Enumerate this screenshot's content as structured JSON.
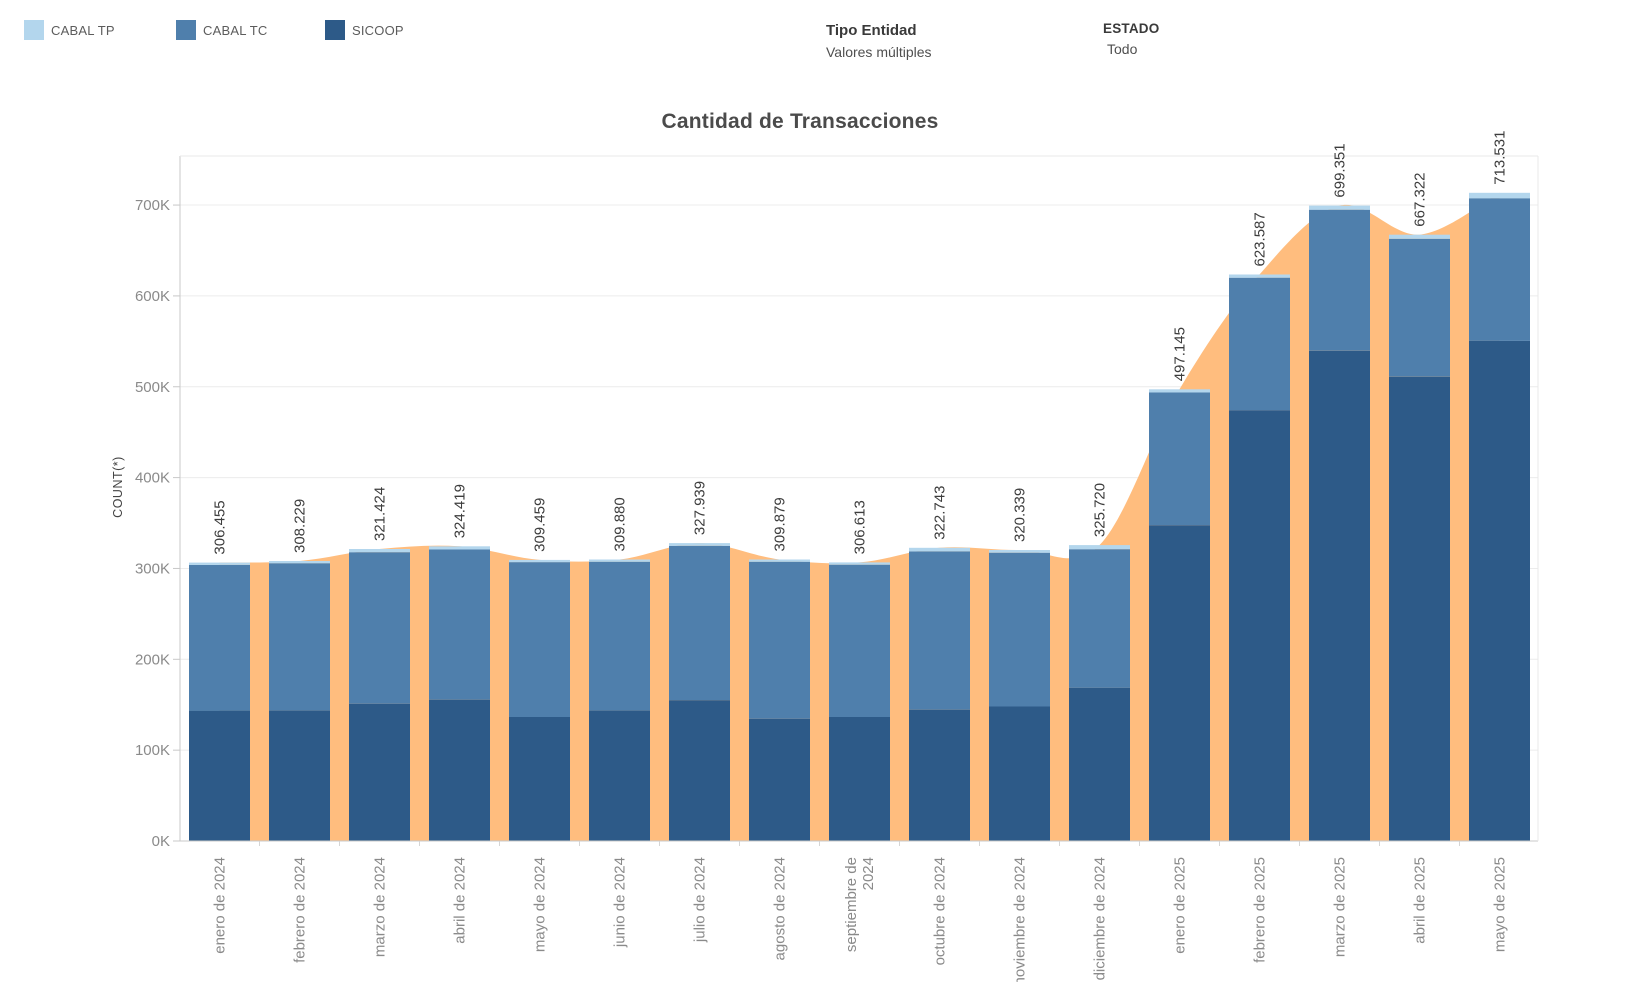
{
  "legend": {
    "items": [
      {
        "label": "CABAL TP",
        "color": "#B3D6ED"
      },
      {
        "label": "CABAL TC",
        "color": "#4F7FAC"
      },
      {
        "label": "SICOOP",
        "color": "#2D5A88"
      }
    ]
  },
  "filters": [
    {
      "title": "Tipo Entidad",
      "value": "Valores múltiples"
    },
    {
      "title": "ESTADO",
      "value": "Todo"
    }
  ],
  "chart_data": {
    "type": "bar",
    "subtype": "stacked-bars-with-area-overlay",
    "title": "Cantidad de Transacciones",
    "xlabel": "",
    "ylabel": "COUNT(*)",
    "units": "thousands",
    "ylim": [
      0,
      754
    ],
    "grid": true,
    "legend_position": "top-left",
    "y_ticks": [
      "0K",
      "100K",
      "200K",
      "300K",
      "400K",
      "500K",
      "600K",
      "700K"
    ],
    "categories": [
      [
        "enero de 2024"
      ],
      [
        "febrero de 2024"
      ],
      [
        "marzo de 2024"
      ],
      [
        "abril de 2024"
      ],
      [
        "mayo de 2024"
      ],
      [
        "junio de 2024"
      ],
      [
        "julio de 2024"
      ],
      [
        "agosto de 2024"
      ],
      [
        "septiembre de",
        "2024"
      ],
      [
        "octubre de 2024"
      ],
      [
        "noviembre de 2024"
      ],
      [
        "diciembre de 2024"
      ],
      [
        "enero de 2025"
      ],
      [
        "febrero de 2025"
      ],
      [
        "marzo de 2025"
      ],
      [
        "abril de 2025"
      ],
      [
        "mayo de 2025"
      ]
    ],
    "series": [
      {
        "name": "SICOOP",
        "color": "#2D5A88",
        "values": [
          143.5,
          143.5,
          151.0,
          155.5,
          136.5,
          143.5,
          155.0,
          134.5,
          136.5,
          144.5,
          148.0,
          168.5,
          347.5,
          474.0,
          539.5,
          511.0,
          550.5
        ]
      },
      {
        "name": "CABAL TC",
        "color": "#4F7FAC",
        "values": [
          160.455,
          162.229,
          166.924,
          165.419,
          170.459,
          163.88,
          169.939,
          172.879,
          167.613,
          174.243,
          169.339,
          152.72,
          146.145,
          146.087,
          155.351,
          151.822,
          157.031
        ]
      },
      {
        "name": "CABAL TP",
        "color": "#B3D6ED",
        "values": [
          2.5,
          2.5,
          3.5,
          3.5,
          2.5,
          2.5,
          3.0,
          2.5,
          2.5,
          4.0,
          3.0,
          4.5,
          3.5,
          3.5,
          4.5,
          4.5,
          6.0
        ]
      }
    ],
    "totals": [
      306.455,
      308.229,
      321.424,
      324.419,
      309.459,
      309.88,
      327.939,
      309.879,
      306.613,
      322.743,
      320.339,
      325.72,
      497.145,
      623.587,
      699.351,
      667.322,
      713.531
    ],
    "total_labels": [
      "306.455",
      "308.229",
      "321.424",
      "324.419",
      "309.459",
      "309.880",
      "327.939",
      "309.879",
      "306.613",
      "322.743",
      "320.339",
      "325.720",
      "497.145",
      "623.587",
      "699.351",
      "667.322",
      "713.531"
    ],
    "area_color": "#FFBD7E"
  }
}
